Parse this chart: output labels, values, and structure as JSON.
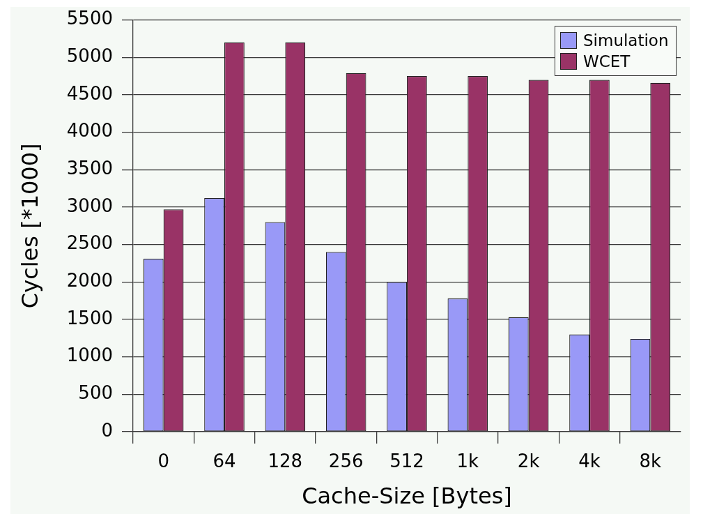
{
  "chart_data": {
    "type": "bar",
    "xlabel": "Cache-Size [Bytes]",
    "ylabel": "Cycles [*1000]",
    "categories": [
      "0",
      "64",
      "128",
      "256",
      "512",
      "1k",
      "2k",
      "4k",
      "8k"
    ],
    "series": [
      {
        "name": "Simulation",
        "color": "#9999f7",
        "values": [
          2310,
          3120,
          2800,
          2400,
          2000,
          1780,
          1530,
          1300,
          1240
        ]
      },
      {
        "name": "WCET",
        "color": "#993366",
        "values": [
          2970,
          5200,
          5200,
          4790,
          4750,
          4750,
          4700,
          4700,
          4660
        ]
      }
    ],
    "ylim": [
      0,
      5500
    ],
    "yticks": [
      0,
      500,
      1000,
      1500,
      2000,
      2500,
      3000,
      3500,
      4000,
      4500,
      5000,
      5500
    ],
    "grid": "y",
    "legend": "top right"
  }
}
